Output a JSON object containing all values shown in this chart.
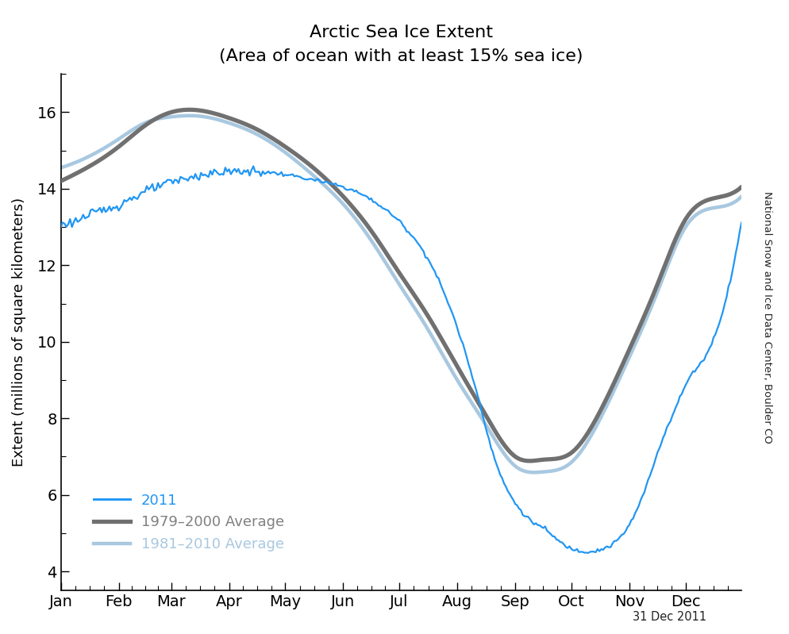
{
  "title_line1": "Arctic Sea Ice Extent",
  "title_line2": "(Area of ocean with at least 15% sea ice)",
  "ylabel": "Extent (millions of square kilometers)",
  "watermark": "National Snow and Ice Data Center, Boulder CO",
  "date_label": "31 Dec 2011",
  "ylim": [
    3.5,
    17.0
  ],
  "yticks": [
    4,
    6,
    8,
    10,
    12,
    14,
    16
  ],
  "month_labels": [
    "Jan",
    "Feb",
    "Mar",
    "Apr",
    "May",
    "Jun",
    "Jul",
    "Aug",
    "Sep",
    "Oct",
    "Nov",
    "Dec"
  ],
  "color_2011": "#2196F3",
  "color_1979_2000": "#707070",
  "color_1981_2010": "#A8C8E0",
  "lw_2011": 1.6,
  "lw_1979_2000": 3.8,
  "lw_1981_2010": 3.2,
  "legend_labels": [
    "2011",
    "1979–2000 Average",
    "1981–2010 Average"
  ],
  "legend_colors": [
    "#2196F3",
    "#808080",
    "#A8C8E0"
  ],
  "background_color": "#ffffff",
  "days_2011": [
    1,
    8,
    15,
    22,
    29,
    36,
    43,
    50,
    57,
    64,
    71,
    78,
    85,
    92,
    99,
    106,
    113,
    120,
    127,
    134,
    141,
    148,
    155,
    162,
    169,
    176,
    183,
    190,
    197,
    204,
    211,
    218,
    225,
    232,
    239,
    246,
    253,
    260,
    267,
    274,
    281,
    288,
    295,
    302,
    309,
    316,
    323,
    330,
    337,
    344,
    351,
    358,
    365
  ],
  "vals_2011": [
    13.05,
    13.15,
    13.28,
    13.42,
    13.52,
    13.68,
    13.85,
    14.0,
    14.12,
    14.22,
    14.3,
    14.38,
    14.42,
    14.45,
    14.46,
    14.44,
    14.42,
    14.38,
    14.32,
    14.25,
    14.18,
    14.1,
    14.0,
    13.85,
    13.65,
    13.4,
    13.1,
    12.7,
    12.2,
    11.5,
    10.65,
    9.6,
    8.4,
    7.1,
    6.2,
    5.65,
    5.3,
    5.1,
    4.8,
    4.6,
    4.52,
    4.55,
    4.68,
    5.0,
    5.6,
    6.5,
    7.5,
    8.3,
    9.05,
    9.5,
    10.2,
    11.4,
    13.15
  ],
  "days_avg_1979": [
    1,
    15,
    32,
    46,
    60,
    75,
    91,
    106,
    121,
    136,
    152,
    167,
    182,
    197,
    213,
    228,
    244,
    259,
    274,
    289,
    305,
    320,
    335,
    350,
    365
  ],
  "vals_avg_1979": [
    14.2,
    14.55,
    15.1,
    15.65,
    16.0,
    16.05,
    15.85,
    15.55,
    15.1,
    14.55,
    13.8,
    12.9,
    11.8,
    10.7,
    9.35,
    8.1,
    7.0,
    6.92,
    7.1,
    8.15,
    9.8,
    11.5,
    13.2,
    13.75,
    14.05
  ],
  "days_avg_1981": [
    1,
    15,
    32,
    46,
    60,
    75,
    91,
    106,
    121,
    136,
    152,
    167,
    182,
    197,
    213,
    228,
    244,
    259,
    274,
    289,
    305,
    320,
    335,
    350,
    365
  ],
  "vals_avg_1981": [
    14.55,
    14.82,
    15.3,
    15.72,
    15.88,
    15.9,
    15.72,
    15.42,
    14.95,
    14.35,
    13.6,
    12.65,
    11.5,
    10.35,
    9.0,
    7.85,
    6.75,
    6.6,
    6.85,
    7.95,
    9.6,
    11.3,
    13.0,
    13.5,
    13.8
  ]
}
